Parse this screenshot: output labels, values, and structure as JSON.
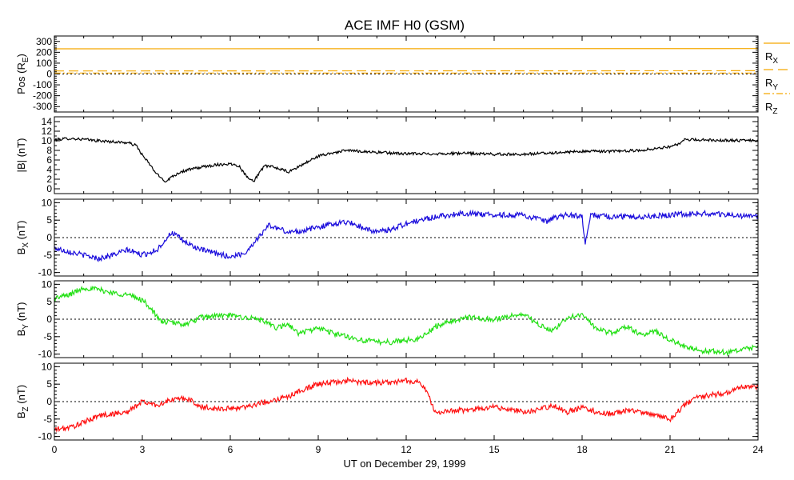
{
  "chart_data": {
    "title": "ACE IMF H0 (GSM)",
    "xlabel": "UT on December 29, 1999",
    "x_ticks": [
      0,
      3,
      6,
      9,
      12,
      15,
      18,
      21,
      24
    ],
    "xlim": [
      0,
      24
    ],
    "panels": [
      {
        "id": "pos",
        "type": "line",
        "ylabel": {
          "base": "Pos (R",
          "sub": "E",
          "tail": ")"
        },
        "ylim": [
          -350,
          350
        ],
        "y_ticks": [
          -300,
          -200,
          -100,
          0,
          100,
          200,
          300
        ],
        "zero_line": true,
        "series": [
          {
            "name": {
              "base": "R",
              "sub": "X"
            },
            "color": "#f5a800",
            "dash": "none",
            "x": [
              0,
              24
            ],
            "y": [
              232,
              234
            ]
          },
          {
            "name": {
              "base": "R",
              "sub": "Y"
            },
            "color": "#f5a800",
            "dash": "12,6",
            "x": [
              0,
              24
            ],
            "y": [
              28,
              30
            ]
          },
          {
            "name": {
              "base": "R",
              "sub": "Z"
            },
            "color": "#f5a800",
            "dash": "8,3,2,3",
            "x": [
              0,
              24
            ],
            "y": [
              9,
              8
            ]
          }
        ]
      },
      {
        "id": "bmag",
        "type": "line",
        "ylabel": {
          "base": "|B| (nT)",
          "sub": "",
          "tail": ""
        },
        "ylim": [
          -1,
          15
        ],
        "y_ticks": [
          0,
          2,
          4,
          6,
          8,
          10,
          12,
          14
        ],
        "zero_line": false,
        "series": [
          {
            "name": {
              "base": "|B|",
              "sub": ""
            },
            "color": "#000000",
            "dash": "none",
            "x": [
              0,
              0.5,
              1.0,
              1.5,
              2.0,
              2.5,
              2.8,
              3.0,
              3.2,
              3.5,
              3.8,
              4.0,
              4.3,
              4.6,
              5.0,
              5.5,
              6.0,
              6.3,
              6.5,
              6.8,
              7.0,
              7.2,
              7.5,
              8.0,
              8.3,
              8.6,
              9.0,
              9.5,
              10.0,
              11.0,
              12.0,
              13.0,
              14.0,
              15.0,
              16.0,
              17.0,
              18.0,
              19.0,
              20.0,
              20.5,
              21.0,
              21.3,
              21.5,
              22.0,
              23.0,
              24.0
            ],
            "y": [
              10.2,
              10.5,
              10.3,
              10.0,
              9.8,
              9.6,
              9.0,
              7.0,
              5.5,
              3.0,
              1.5,
              2.5,
              3.5,
              4.0,
              4.5,
              5.0,
              5.2,
              4.8,
              3.0,
              1.5,
              3.5,
              4.8,
              4.5,
              3.5,
              4.5,
              5.5,
              6.8,
              7.5,
              8.0,
              7.6,
              7.3,
              7.3,
              7.4,
              7.2,
              7.2,
              7.5,
              7.8,
              7.8,
              8.0,
              8.4,
              8.8,
              9.3,
              10.2,
              10.2,
              10.1,
              10.0
            ]
          }
        ]
      },
      {
        "id": "bx",
        "type": "line",
        "ylabel": {
          "base": "B",
          "sub": "X",
          "tail": " (nT)"
        },
        "ylim": [
          -11,
          11
        ],
        "y_ticks": [
          -10,
          -5,
          0,
          5,
          10
        ],
        "zero_line": true,
        "series": [
          {
            "name": {
              "base": "B",
              "sub": "X"
            },
            "color": "#1a0cdc",
            "dash": "none",
            "x": [
              0,
              0.5,
              1.0,
              1.5,
              2.0,
              2.5,
              3.0,
              3.5,
              4.0,
              4.5,
              5.0,
              5.5,
              6.0,
              6.5,
              7.0,
              7.3,
              7.5,
              8.0,
              8.5,
              9.0,
              9.5,
              10.0,
              10.5,
              11.0,
              11.5,
              12.0,
              12.5,
              13.0,
              14.0,
              15.0,
              16.0,
              16.8,
              17.0,
              17.5,
              18.0,
              18.1,
              18.3,
              19.0,
              20.0,
              21.0,
              22.0,
              23.0,
              24.0
            ],
            "y": [
              -3.0,
              -4.0,
              -5.0,
              -6.0,
              -5.0,
              -3.5,
              -5.0,
              -3.5,
              1.5,
              -1.5,
              -3.5,
              -4.5,
              -5.5,
              -4.5,
              0.5,
              3.5,
              3.0,
              1.5,
              2.0,
              3.0,
              4.0,
              4.5,
              3.0,
              1.5,
              2.5,
              4.0,
              5.0,
              6.0,
              7.0,
              6.5,
              6.5,
              4.5,
              5.5,
              6.5,
              6.0,
              -2.0,
              6.5,
              6.0,
              6.0,
              6.5,
              7.0,
              6.5,
              6.0
            ]
          }
        ]
      },
      {
        "id": "by",
        "type": "line",
        "ylabel": {
          "base": "B",
          "sub": "Y",
          "tail": " (nT)"
        },
        "ylim": [
          -11,
          11
        ],
        "y_ticks": [
          -10,
          -5,
          0,
          5,
          10
        ],
        "zero_line": true,
        "series": [
          {
            "name": {
              "base": "B",
              "sub": "Y"
            },
            "color": "#22e014",
            "dash": "none",
            "x": [
              0,
              0.5,
              1.0,
              1.5,
              2.0,
              2.5,
              3.0,
              3.3,
              3.6,
              4.0,
              4.5,
              5.0,
              5.5,
              6.0,
              6.5,
              7.0,
              7.3,
              7.6,
              8.0,
              8.3,
              8.6,
              9.0,
              9.5,
              10.0,
              10.5,
              11.0,
              11.5,
              12.0,
              12.5,
              13.0,
              14.0,
              15.0,
              16.0,
              16.5,
              17.0,
              17.5,
              18.0,
              18.5,
              19.0,
              19.5,
              20.0,
              20.5,
              21.0,
              21.5,
              22.0,
              23.0,
              24.0
            ],
            "y": [
              6.0,
              7.0,
              9.0,
              8.5,
              7.5,
              7.0,
              5.5,
              3.0,
              -0.5,
              -1.0,
              -1.5,
              0.5,
              1.0,
              1.0,
              0.5,
              0.0,
              -1.5,
              -2.5,
              -1.5,
              -4.0,
              -3.5,
              -2.5,
              -4.0,
              -5.0,
              -6.0,
              -6.5,
              -6.5,
              -6.0,
              -5.5,
              -2.0,
              0.5,
              0.0,
              1.5,
              -1.5,
              -3.5,
              0.5,
              1.5,
              -3.0,
              -4.0,
              -2.0,
              -4.5,
              -3.5,
              -6.0,
              -7.5,
              -9.0,
              -9.5,
              -8.0
            ]
          }
        ]
      },
      {
        "id": "bz",
        "type": "line",
        "ylabel": {
          "base": "B",
          "sub": "Z",
          "tail": " (nT)"
        },
        "ylim": [
          -11,
          11
        ],
        "y_ticks": [
          -10,
          -5,
          0,
          5,
          10
        ],
        "zero_line": true,
        "series": [
          {
            "name": {
              "base": "B",
              "sub": "Z"
            },
            "color": "#ff1010",
            "dash": "none",
            "x": [
              0,
              0.5,
              1.0,
              1.5,
              2.0,
              2.5,
              3.0,
              3.5,
              4.0,
              4.5,
              5.0,
              5.5,
              6.0,
              6.5,
              7.0,
              7.5,
              8.0,
              8.5,
              9.0,
              9.5,
              10.0,
              10.5,
              11.0,
              11.5,
              12.0,
              12.5,
              12.8,
              13.0,
              13.5,
              14.0,
              15.0,
              16.0,
              16.5,
              17.0,
              17.5,
              18.0,
              18.5,
              19.0,
              19.5,
              20.0,
              20.5,
              21.0,
              21.5,
              22.0,
              23.0,
              23.5,
              24.0
            ],
            "y": [
              -8.0,
              -7.5,
              -6.0,
              -4.0,
              -3.5,
              -3.0,
              0.0,
              -1.0,
              0.5,
              1.0,
              -1.5,
              -2.0,
              -2.0,
              -1.5,
              -0.5,
              0.5,
              1.5,
              3.5,
              5.0,
              5.5,
              6.0,
              5.5,
              5.5,
              5.5,
              6.0,
              5.5,
              1.0,
              -3.5,
              -2.5,
              -2.5,
              -1.5,
              -3.0,
              -2.5,
              -1.0,
              -3.0,
              -1.5,
              -3.0,
              -3.5,
              -2.5,
              -3.0,
              -4.0,
              -5.0,
              -1.0,
              1.5,
              2.5,
              4.5,
              4.0
            ]
          }
        ]
      }
    ]
  }
}
